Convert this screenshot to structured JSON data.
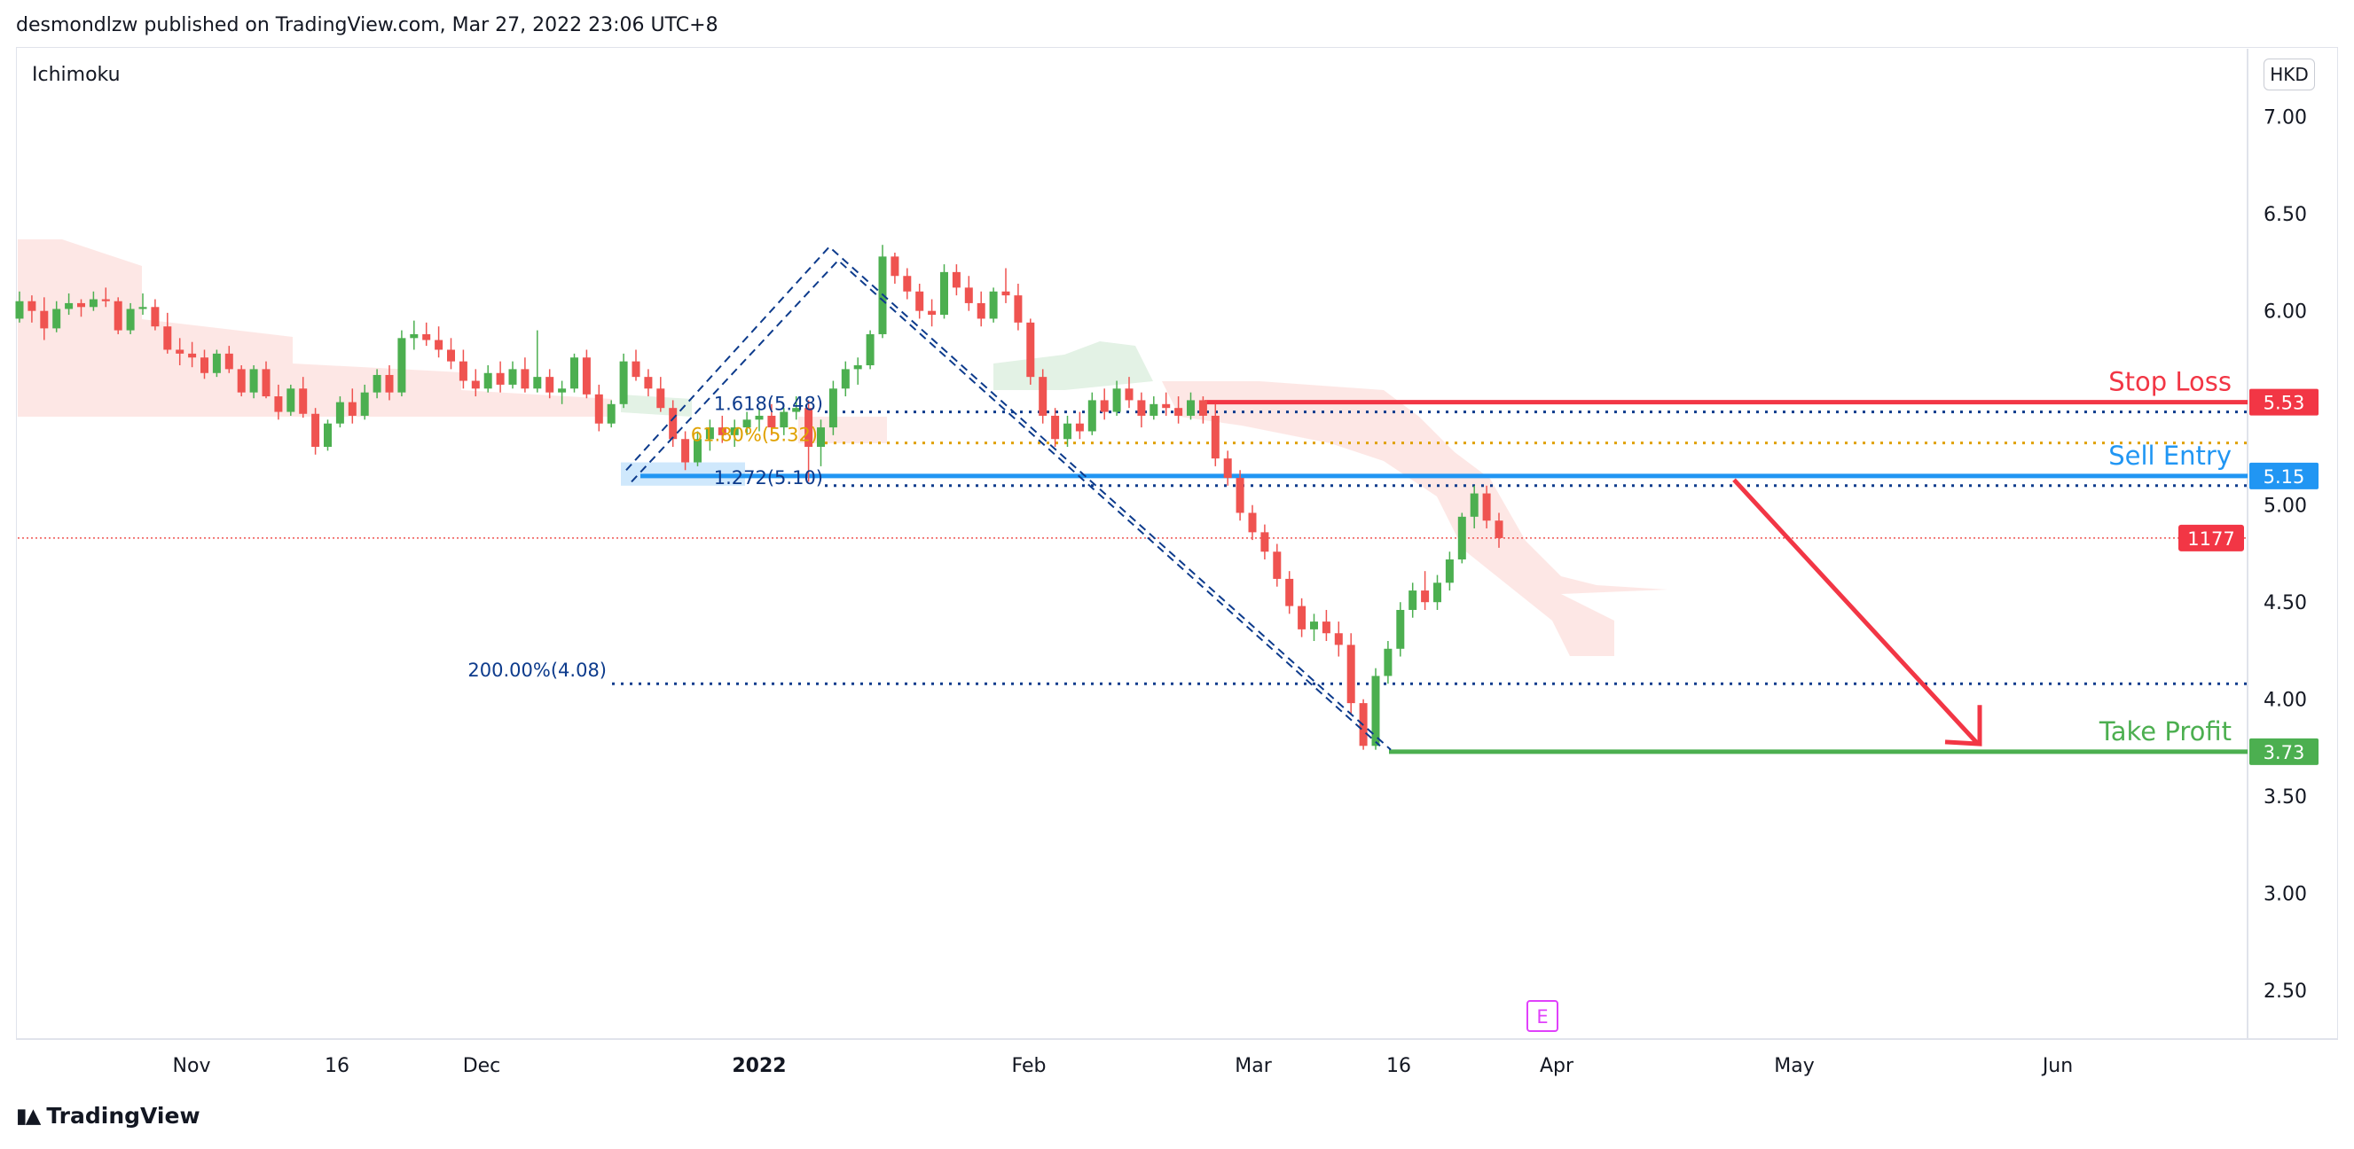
{
  "header": {
    "published_by": "desmondlzw published on TradingView.com, Mar 27, 2022 23:06 UTC+8"
  },
  "indicator_label": "Ichimoku",
  "currency": "HKD",
  "footer_brand": "TradingView",
  "colors": {
    "bull": "#26a69a",
    "bull_candle": "#4caf50",
    "bear": "#ef5350",
    "stop_loss": "#f23645",
    "sell_entry": "#2196f3",
    "take_profit": "#4caf50",
    "fib_blue": "#0d3b8c",
    "fib_gold": "#e0a100",
    "cloud_red": "#fde3e1",
    "cloud_green": "#e3f2e5",
    "earnings": "#e040fb",
    "price_badge": "#f23645"
  },
  "chart_data": {
    "type": "candlestick",
    "symbol_currency": "HKD",
    "y_axis": {
      "ticks": [
        "7.00",
        "6.50",
        "6.00",
        "5.50",
        "5.00",
        "4.50",
        "4.00",
        "3.50",
        "3.00",
        "2.50"
      ],
      "range": [
        2.25,
        7.35
      ]
    },
    "x_axis": {
      "ticks": [
        {
          "label": "Nov",
          "bold": false
        },
        {
          "label": "16",
          "bold": false
        },
        {
          "label": "Dec",
          "bold": false
        },
        {
          "label": "2022",
          "bold": true
        },
        {
          "label": "Feb",
          "bold": false
        },
        {
          "label": "Mar",
          "bold": false
        },
        {
          "label": "16",
          "bold": false
        },
        {
          "label": "Apr",
          "bold": false
        },
        {
          "label": "May",
          "bold": false
        },
        {
          "label": "Jun",
          "bold": false
        }
      ]
    },
    "price_levels": {
      "stop_loss": {
        "label": "Stop Loss",
        "value": 5.53,
        "badge": "5.53"
      },
      "sell_entry": {
        "label": "Sell Entry",
        "value": 5.15,
        "badge": "5.15"
      },
      "take_profit": {
        "label": "Take Profit",
        "value": 3.73,
        "badge": "3.73"
      },
      "last_price": {
        "value": 4.83,
        "badge": "1177"
      }
    },
    "fib_levels": [
      {
        "label": "1.618(5.48)",
        "value": 5.48,
        "color": "fib_blue"
      },
      {
        "label": "61.80%(5.32)",
        "value": 5.32,
        "color": "fib_gold"
      },
      {
        "label": "1.272(5.10)",
        "value": 5.1,
        "color": "fib_blue"
      },
      {
        "label": "200.00%(4.08)",
        "value": 4.08,
        "color": "fib_blue"
      }
    ],
    "earnings_marker": "E",
    "candles": [
      [
        5.96,
        6.1,
        5.94,
        6.05
      ],
      [
        6.05,
        6.08,
        5.94,
        6.0
      ],
      [
        6.0,
        6.07,
        5.85,
        5.91
      ],
      [
        5.91,
        6.05,
        5.89,
        6.01
      ],
      [
        6.01,
        6.09,
        5.98,
        6.04
      ],
      [
        6.04,
        6.06,
        5.97,
        6.02
      ],
      [
        6.02,
        6.1,
        6.0,
        6.06
      ],
      [
        6.06,
        6.12,
        6.02,
        6.05
      ],
      [
        6.05,
        6.07,
        5.88,
        5.9
      ],
      [
        5.9,
        6.04,
        5.88,
        6.01
      ],
      [
        6.01,
        6.09,
        5.98,
        6.02
      ],
      [
        6.02,
        6.06,
        5.9,
        5.92
      ],
      [
        5.92,
        5.99,
        5.78,
        5.8
      ],
      [
        5.8,
        5.86,
        5.72,
        5.78
      ],
      [
        5.78,
        5.84,
        5.71,
        5.76
      ],
      [
        5.76,
        5.8,
        5.65,
        5.68
      ],
      [
        5.68,
        5.8,
        5.66,
        5.78
      ],
      [
        5.78,
        5.82,
        5.68,
        5.7
      ],
      [
        5.7,
        5.72,
        5.56,
        5.58
      ],
      [
        5.58,
        5.72,
        5.55,
        5.7
      ],
      [
        5.7,
        5.74,
        5.55,
        5.56
      ],
      [
        5.56,
        5.62,
        5.44,
        5.48
      ],
      [
        5.48,
        5.62,
        5.46,
        5.6
      ],
      [
        5.6,
        5.66,
        5.45,
        5.47
      ],
      [
        5.47,
        5.5,
        5.26,
        5.3
      ],
      [
        5.3,
        5.44,
        5.28,
        5.42
      ],
      [
        5.42,
        5.56,
        5.4,
        5.53
      ],
      [
        5.53,
        5.6,
        5.42,
        5.46
      ],
      [
        5.46,
        5.62,
        5.44,
        5.58
      ],
      [
        5.58,
        5.7,
        5.55,
        5.67
      ],
      [
        5.67,
        5.72,
        5.54,
        5.58
      ],
      [
        5.58,
        5.9,
        5.56,
        5.86
      ],
      [
        5.86,
        5.95,
        5.8,
        5.88
      ],
      [
        5.88,
        5.94,
        5.82,
        5.85
      ],
      [
        5.85,
        5.92,
        5.76,
        5.8
      ],
      [
        5.8,
        5.86,
        5.7,
        5.74
      ],
      [
        5.74,
        5.8,
        5.6,
        5.64
      ],
      [
        5.64,
        5.7,
        5.56,
        5.6
      ],
      [
        5.6,
        5.72,
        5.58,
        5.68
      ],
      [
        5.68,
        5.74,
        5.58,
        5.62
      ],
      [
        5.62,
        5.74,
        5.6,
        5.7
      ],
      [
        5.7,
        5.76,
        5.58,
        5.6
      ],
      [
        5.6,
        5.9,
        5.58,
        5.66
      ],
      [
        5.66,
        5.7,
        5.55,
        5.58
      ],
      [
        5.58,
        5.64,
        5.52,
        5.6
      ],
      [
        5.6,
        5.78,
        5.58,
        5.76
      ],
      [
        5.76,
        5.8,
        5.55,
        5.57
      ],
      [
        5.57,
        5.62,
        5.38,
        5.42
      ],
      [
        5.42,
        5.54,
        5.4,
        5.52
      ],
      [
        5.52,
        5.78,
        5.5,
        5.74
      ],
      [
        5.74,
        5.8,
        5.64,
        5.66
      ],
      [
        5.66,
        5.7,
        5.56,
        5.6
      ],
      [
        5.6,
        5.66,
        5.48,
        5.5
      ],
      [
        5.5,
        5.54,
        5.3,
        5.34
      ],
      [
        5.34,
        5.38,
        5.18,
        5.22
      ],
      [
        5.22,
        5.38,
        5.2,
        5.34
      ],
      [
        5.34,
        5.44,
        5.28,
        5.4
      ],
      [
        5.4,
        5.46,
        5.32,
        5.36
      ],
      [
        5.36,
        5.44,
        5.3,
        5.4
      ],
      [
        5.4,
        5.48,
        5.36,
        5.44
      ],
      [
        5.44,
        5.5,
        5.38,
        5.46
      ],
      [
        5.46,
        5.52,
        5.36,
        5.4
      ],
      [
        5.4,
        5.5,
        5.36,
        5.48
      ],
      [
        5.48,
        5.56,
        5.44,
        5.5
      ],
      [
        5.5,
        5.54,
        5.12,
        5.3
      ],
      [
        5.3,
        5.44,
        5.2,
        5.4
      ],
      [
        5.4,
        5.64,
        5.36,
        5.6
      ],
      [
        5.6,
        5.74,
        5.56,
        5.7
      ],
      [
        5.7,
        5.76,
        5.62,
        5.72
      ],
      [
        5.72,
        5.9,
        5.7,
        5.88
      ],
      [
        5.88,
        6.34,
        5.86,
        6.28
      ],
      [
        6.28,
        6.3,
        6.14,
        6.18
      ],
      [
        6.18,
        6.22,
        6.06,
        6.1
      ],
      [
        6.1,
        6.14,
        5.96,
        6.0
      ],
      [
        6.0,
        6.06,
        5.92,
        5.98
      ],
      [
        5.98,
        6.24,
        5.96,
        6.2
      ],
      [
        6.2,
        6.24,
        6.08,
        6.12
      ],
      [
        6.12,
        6.18,
        6.0,
        6.04
      ],
      [
        6.04,
        6.1,
        5.92,
        5.96
      ],
      [
        5.96,
        6.12,
        5.94,
        6.1
      ],
      [
        6.1,
        6.22,
        6.04,
        6.08
      ],
      [
        6.08,
        6.14,
        5.9,
        5.94
      ],
      [
        5.94,
        5.96,
        5.62,
        5.66
      ],
      [
        5.66,
        5.7,
        5.42,
        5.46
      ],
      [
        5.46,
        5.5,
        5.3,
        5.34
      ],
      [
        5.34,
        5.46,
        5.3,
        5.42
      ],
      [
        5.42,
        5.48,
        5.34,
        5.38
      ],
      [
        5.38,
        5.58,
        5.36,
        5.54
      ],
      [
        5.54,
        5.6,
        5.44,
        5.48
      ],
      [
        5.48,
        5.64,
        5.46,
        5.6
      ],
      [
        5.6,
        5.66,
        5.5,
        5.54
      ],
      [
        5.54,
        5.58,
        5.4,
        5.46
      ],
      [
        5.46,
        5.56,
        5.44,
        5.52
      ],
      [
        5.52,
        5.58,
        5.46,
        5.5
      ],
      [
        5.5,
        5.56,
        5.42,
        5.46
      ],
      [
        5.46,
        5.58,
        5.44,
        5.54
      ],
      [
        5.54,
        5.56,
        5.42,
        5.46
      ],
      [
        5.46,
        5.52,
        5.2,
        5.24
      ],
      [
        5.24,
        5.28,
        5.1,
        5.14
      ],
      [
        5.14,
        5.18,
        4.92,
        4.96
      ],
      [
        4.96,
        5.0,
        4.82,
        4.86
      ],
      [
        4.86,
        4.9,
        4.72,
        4.76
      ],
      [
        4.76,
        4.8,
        4.58,
        4.62
      ],
      [
        4.62,
        4.66,
        4.44,
        4.48
      ],
      [
        4.48,
        4.52,
        4.32,
        4.36
      ],
      [
        4.36,
        4.44,
        4.3,
        4.4
      ],
      [
        4.4,
        4.46,
        4.3,
        4.34
      ],
      [
        4.34,
        4.4,
        4.22,
        4.28
      ],
      [
        4.28,
        4.34,
        3.92,
        3.98
      ],
      [
        3.98,
        4.0,
        3.74,
        3.76
      ],
      [
        3.76,
        4.16,
        3.74,
        4.12
      ],
      [
        4.12,
        4.3,
        4.08,
        4.26
      ],
      [
        4.26,
        4.5,
        4.22,
        4.46
      ],
      [
        4.46,
        4.6,
        4.42,
        4.56
      ],
      [
        4.56,
        4.66,
        4.46,
        4.5
      ],
      [
        4.5,
        4.64,
        4.46,
        4.6
      ],
      [
        4.6,
        4.76,
        4.56,
        4.72
      ],
      [
        4.72,
        4.96,
        4.7,
        4.94
      ],
      [
        4.94,
        5.1,
        4.88,
        5.06
      ],
      [
        5.06,
        5.1,
        4.88,
        4.92
      ],
      [
        4.92,
        4.96,
        4.78,
        4.83
      ]
    ]
  }
}
